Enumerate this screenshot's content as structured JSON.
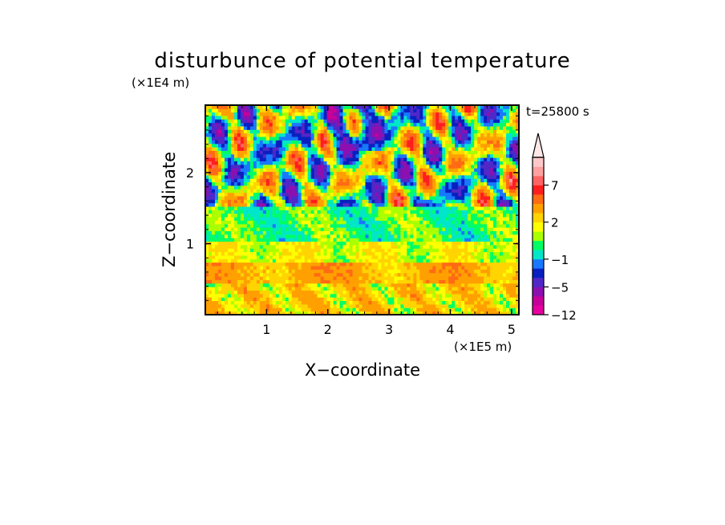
{
  "chart_data": {
    "type": "heatmap",
    "title": "disturbunce of potential temperature",
    "time_label": "t=25800 s",
    "xlabel": "X−coordinate",
    "ylabel": "Z−coordinate",
    "x_unit": "(×1E5 m)",
    "y_unit": "(×1E4 m)",
    "xlim": [
      0,
      5.12
    ],
    "ylim": [
      0,
      2.95
    ],
    "x_ticks": [
      "1",
      "2",
      "3",
      "4",
      "5"
    ],
    "x_tick_values": [
      1,
      2,
      3,
      4,
      5
    ],
    "y_ticks": [
      "1",
      "2"
    ],
    "y_tick_values": [
      1,
      2
    ],
    "grid": false,
    "colorbar": {
      "placement": "right",
      "extend_top": true,
      "tick_labels": [
        "−12",
        "−5",
        "−1",
        "2",
        "7"
      ],
      "tick_values": [
        -12,
        -5,
        -1,
        2,
        7
      ],
      "colors": [
        "#e600a0",
        "#c8009a",
        "#8c10b0",
        "#5028c8",
        "#0820c0",
        "#1878ff",
        "#00e6c8",
        "#00ff64",
        "#aaff00",
        "#ffff00",
        "#ffd400",
        "#ffa000",
        "#ff6a14",
        "#ff1e1e",
        "#ff6464",
        "#ffa0a0",
        "#ffc8c8"
      ],
      "top_color": "#ffe8e8"
    },
    "layers": [
      {
        "z_range": [
          0.0,
          0.45
        ],
        "dominant": "yellow–orange",
        "values_approx": [
          1,
          4
        ]
      },
      {
        "z_range": [
          0.45,
          0.75
        ],
        "dominant": "orange bands",
        "values_approx": [
          2,
          5
        ]
      },
      {
        "z_range": [
          0.75,
          1.05
        ],
        "dominant": "yellow",
        "values_approx": [
          0,
          2
        ]
      },
      {
        "z_range": [
          1.05,
          1.5
        ],
        "dominant": "green",
        "values_approx": [
          -1,
          0
        ]
      },
      {
        "z_range": [
          1.5,
          2.95
        ],
        "dominant": "mixed blue / orange / red cells",
        "values_approx": [
          -8,
          8
        ]
      }
    ]
  }
}
